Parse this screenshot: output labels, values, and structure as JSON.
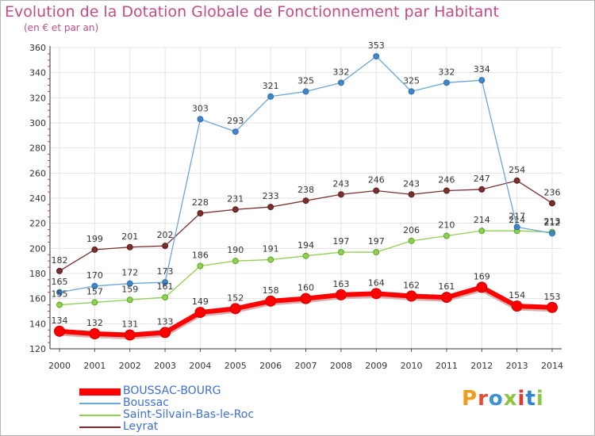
{
  "title": "Evolution de la Dotation Globale de Fonctionnement par Habitant",
  "subtitle": "(en € et par an)",
  "logo": {
    "text": "Proxiti",
    "colors": [
      "#f19c1c",
      "#e54c35",
      "#3c8fd8",
      "#8cc63f",
      "#e5372f",
      "#2e86d6",
      "#8cc63f"
    ]
  },
  "chart_data": {
    "type": "line",
    "x": [
      2000,
      2001,
      2002,
      2003,
      2004,
      2005,
      2006,
      2007,
      2008,
      2009,
      2010,
      2011,
      2012,
      2013,
      2014
    ],
    "ylim": [
      120,
      360
    ],
    "yticks": [
      120,
      140,
      160,
      180,
      200,
      220,
      240,
      260,
      280,
      300,
      320,
      340,
      360
    ],
    "grid": true,
    "legend": "bottom-left",
    "series": [
      {
        "name": "Leyrat",
        "color": "#7b2e2e",
        "values": [
          182,
          199,
          201,
          202,
          228,
          231,
          233,
          238,
          243,
          246,
          243,
          246,
          247,
          254,
          236
        ]
      },
      {
        "name": "Saint-Silvain-Bas-le-Roc",
        "color": "#8fd14f",
        "values": [
          155,
          157,
          159,
          161,
          186,
          190,
          191,
          194,
          197,
          197,
          206,
          210,
          214,
          214,
          213
        ]
      },
      {
        "name": "Boussac",
        "color": "#6aa6d8",
        "values": [
          165,
          170,
          172,
          173,
          303,
          293,
          321,
          325,
          332,
          353,
          325,
          332,
          334,
          217,
          212
        ]
      },
      {
        "name": "BOUSSAC-BOURG",
        "color": "#ff0000",
        "values": [
          134,
          132,
          131,
          133,
          149,
          152,
          158,
          160,
          163,
          164,
          162,
          161,
          169,
          154,
          153
        ]
      }
    ]
  }
}
